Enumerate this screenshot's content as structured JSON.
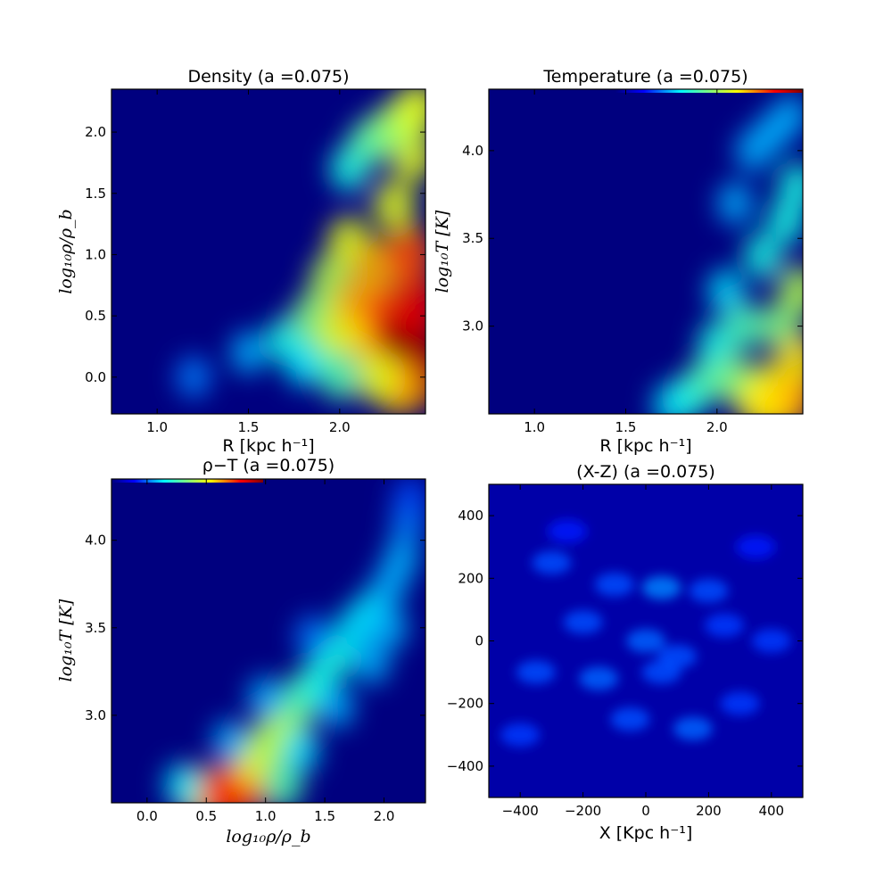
{
  "chart_data": [
    {
      "type": "heatmap",
      "title": "Density (a =0.075)",
      "xlabel": "R [kpc h⁻¹]",
      "ylabel": "log₁₀ρ/ρ_b",
      "xlim": [
        0.75,
        2.47
      ],
      "ylim": [
        -0.3,
        2.35
      ],
      "xticks": [
        "1.0",
        "1.5",
        "2.0"
      ],
      "yticks": [
        "0.0",
        "0.5",
        "1.0",
        "1.5",
        "2.0"
      ],
      "colormap": "jet",
      "colorbar_strip": false,
      "points": [
        [
          1.2,
          0.0,
          0.25
        ],
        [
          1.5,
          0.2,
          0.3
        ],
        [
          1.7,
          0.3,
          0.4
        ],
        [
          1.85,
          0.5,
          0.5
        ],
        [
          1.9,
          0.2,
          0.5
        ],
        [
          1.95,
          0.8,
          0.55
        ],
        [
          2.0,
          0.4,
          0.6
        ],
        [
          2.05,
          1.1,
          0.6
        ],
        [
          2.1,
          0.6,
          0.7
        ],
        [
          2.15,
          0.3,
          0.65
        ],
        [
          2.2,
          0.9,
          0.7
        ],
        [
          2.25,
          0.5,
          0.8
        ],
        [
          2.3,
          0.2,
          0.85
        ],
        [
          2.35,
          0.35,
          0.95
        ],
        [
          2.4,
          0.25,
          1.0
        ],
        [
          2.42,
          0.6,
          0.9
        ],
        [
          2.38,
          1.0,
          0.8
        ],
        [
          2.3,
          1.4,
          0.6
        ],
        [
          2.4,
          1.8,
          0.6
        ],
        [
          2.05,
          1.7,
          0.4
        ],
        [
          2.15,
          1.9,
          0.45
        ],
        [
          2.25,
          2.0,
          0.5
        ],
        [
          2.35,
          2.1,
          0.55
        ],
        [
          2.43,
          2.2,
          0.6
        ],
        [
          2.44,
          0.0,
          0.95
        ],
        [
          2.33,
          -0.1,
          0.7
        ],
        [
          2.2,
          0.0,
          0.6
        ],
        [
          2.0,
          0.0,
          0.45
        ],
        [
          1.8,
          0.1,
          0.35
        ]
      ]
    },
    {
      "type": "heatmap",
      "title": "Temperature (a =0.075)",
      "xlabel": "R [kpc h⁻¹]",
      "ylabel": "log₁₀T  [K]",
      "xlim": [
        0.75,
        2.47
      ],
      "ylim": [
        2.5,
        4.35
      ],
      "xticks": [
        "1.0",
        "1.5",
        "2.0"
      ],
      "yticks": [
        "3.0",
        "3.5",
        "4.0"
      ],
      "colormap": "jet",
      "colorbar_strip": true,
      "points": [
        [
          1.75,
          2.55,
          0.35
        ],
        [
          1.85,
          2.6,
          0.4
        ],
        [
          1.95,
          2.7,
          0.45
        ],
        [
          2.0,
          2.9,
          0.4
        ],
        [
          2.05,
          3.2,
          0.35
        ],
        [
          2.1,
          2.7,
          0.5
        ],
        [
          2.15,
          3.0,
          0.45
        ],
        [
          2.2,
          2.6,
          0.55
        ],
        [
          2.25,
          3.4,
          0.4
        ],
        [
          2.3,
          2.65,
          0.6
        ],
        [
          2.35,
          3.0,
          0.5
        ],
        [
          2.38,
          3.6,
          0.4
        ],
        [
          2.42,
          2.6,
          0.75
        ],
        [
          2.44,
          2.8,
          0.65
        ],
        [
          2.45,
          3.2,
          0.55
        ],
        [
          2.44,
          3.8,
          0.4
        ],
        [
          2.35,
          2.55,
          0.7
        ],
        [
          2.25,
          2.55,
          0.65
        ],
        [
          2.1,
          3.7,
          0.3
        ],
        [
          2.2,
          4.0,
          0.3
        ],
        [
          2.3,
          4.1,
          0.3
        ],
        [
          2.4,
          4.2,
          0.3
        ]
      ]
    },
    {
      "type": "heatmap",
      "title": "ρ−T (a =0.075)",
      "xlabel": "log₁₀ρ/ρ_b",
      "ylabel": "log₁₀T  [K]",
      "xlim": [
        -0.3,
        2.35
      ],
      "ylim": [
        2.5,
        4.35
      ],
      "xticks": [
        "0.0",
        "0.5",
        "1.0",
        "1.5",
        "2.0"
      ],
      "yticks": [
        "3.0",
        "3.5",
        "4.0"
      ],
      "colormap": "jet",
      "colorbar_strip": true,
      "points": [
        [
          0.45,
          2.55,
          0.6
        ],
        [
          0.65,
          2.55,
          0.85
        ],
        [
          0.85,
          2.6,
          0.8
        ],
        [
          0.9,
          2.75,
          0.6
        ],
        [
          1.05,
          2.85,
          0.55
        ],
        [
          1.2,
          2.95,
          0.55
        ],
        [
          1.3,
          3.1,
          0.45
        ],
        [
          1.45,
          3.2,
          0.4
        ],
        [
          1.6,
          3.35,
          0.4
        ],
        [
          1.75,
          3.5,
          0.35
        ],
        [
          1.9,
          3.6,
          0.35
        ],
        [
          2.05,
          3.75,
          0.3
        ],
        [
          2.15,
          3.9,
          0.3
        ],
        [
          2.2,
          4.1,
          0.25
        ],
        [
          2.22,
          4.25,
          0.2
        ],
        [
          1.3,
          2.8,
          0.35
        ],
        [
          1.6,
          3.05,
          0.3
        ],
        [
          1.9,
          3.3,
          0.3
        ],
        [
          2.05,
          3.5,
          0.3
        ],
        [
          1.0,
          3.1,
          0.3
        ],
        [
          0.7,
          2.85,
          0.3
        ],
        [
          1.4,
          3.45,
          0.25
        ],
        [
          0.3,
          2.6,
          0.35
        ],
        [
          1.15,
          2.6,
          0.45
        ]
      ]
    },
    {
      "type": "heatmap",
      "title": "(X-Z) (a =0.075)",
      "xlabel": "X [Kpc h⁻¹]",
      "ylabel": "",
      "xlim": [
        -500,
        500
      ],
      "ylim": [
        -500,
        500
      ],
      "xticks": [
        "−400",
        "−200",
        "0",
        "200",
        "400"
      ],
      "yticks": [
        "−400",
        "−200",
        "0",
        "200",
        "400"
      ],
      "colormap": "jet",
      "colorbar_strip": false,
      "points": [
        [
          -300,
          250,
          0.2
        ],
        [
          -100,
          180,
          0.2
        ],
        [
          50,
          170,
          0.25
        ],
        [
          200,
          160,
          0.2
        ],
        [
          -200,
          60,
          0.2
        ],
        [
          0,
          0,
          0.22
        ],
        [
          100,
          -50,
          0.2
        ],
        [
          -350,
          -100,
          0.2
        ],
        [
          -150,
          -120,
          0.22
        ],
        [
          50,
          -100,
          0.2
        ],
        [
          150,
          -280,
          0.22
        ],
        [
          300,
          -200,
          0.18
        ],
        [
          -400,
          -300,
          0.18
        ],
        [
          -50,
          -250,
          0.2
        ],
        [
          250,
          50,
          0.18
        ],
        [
          400,
          0,
          0.18
        ],
        [
          -250,
          350,
          0.15
        ],
        [
          350,
          300,
          0.15
        ]
      ]
    }
  ]
}
